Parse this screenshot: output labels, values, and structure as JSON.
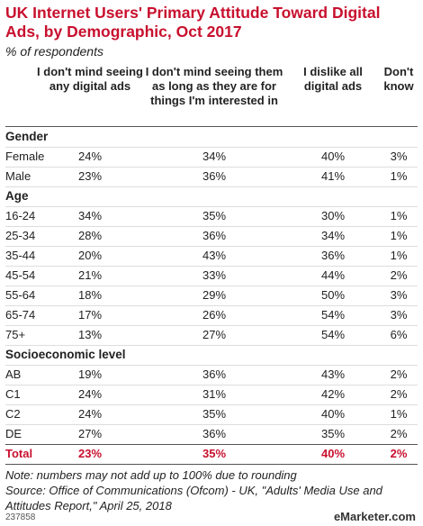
{
  "header": {
    "title": "UK Internet Users' Primary Attitude Toward Digital Ads, by Demographic, Oct 2017",
    "subtitle": "% of respondents"
  },
  "table": {
    "columns": [
      "I don't mind seeing any digital ads",
      "I don't mind seeing them as long as they are for things I'm interested in",
      "I dislike all digital ads",
      "Don't know"
    ],
    "sections": [
      {
        "label": "Gender",
        "rows": [
          [
            "Female",
            "24%",
            "34%",
            "40%",
            "3%"
          ],
          [
            "Male",
            "23%",
            "36%",
            "41%",
            "1%"
          ]
        ]
      },
      {
        "label": "Age",
        "rows": [
          [
            "16-24",
            "34%",
            "35%",
            "30%",
            "1%"
          ],
          [
            "25-34",
            "28%",
            "36%",
            "34%",
            "1%"
          ],
          [
            "35-44",
            "20%",
            "43%",
            "36%",
            "1%"
          ],
          [
            "45-54",
            "21%",
            "33%",
            "44%",
            "2%"
          ],
          [
            "55-64",
            "18%",
            "29%",
            "50%",
            "3%"
          ],
          [
            "65-74",
            "17%",
            "26%",
            "54%",
            "3%"
          ],
          [
            "75+",
            "13%",
            "27%",
            "54%",
            "6%"
          ]
        ]
      },
      {
        "label": "Socioeconomic level",
        "rows": [
          [
            "AB",
            "19%",
            "36%",
            "43%",
            "2%"
          ],
          [
            "C1",
            "24%",
            "31%",
            "42%",
            "2%"
          ],
          [
            "C2",
            "24%",
            "35%",
            "40%",
            "1%"
          ],
          [
            "DE",
            "27%",
            "36%",
            "35%",
            "2%"
          ]
        ]
      }
    ],
    "total": [
      "Total",
      "23%",
      "35%",
      "40%",
      "2%"
    ]
  },
  "footer": {
    "note": "Note: numbers may not add up to 100% due to rounding",
    "source": "Source: Office of Communications (Ofcom) - UK, \"Adults' Media Use and Attitudes Report,\" April 25, 2018",
    "id": "237858",
    "brand": "eMarketer.com"
  }
}
